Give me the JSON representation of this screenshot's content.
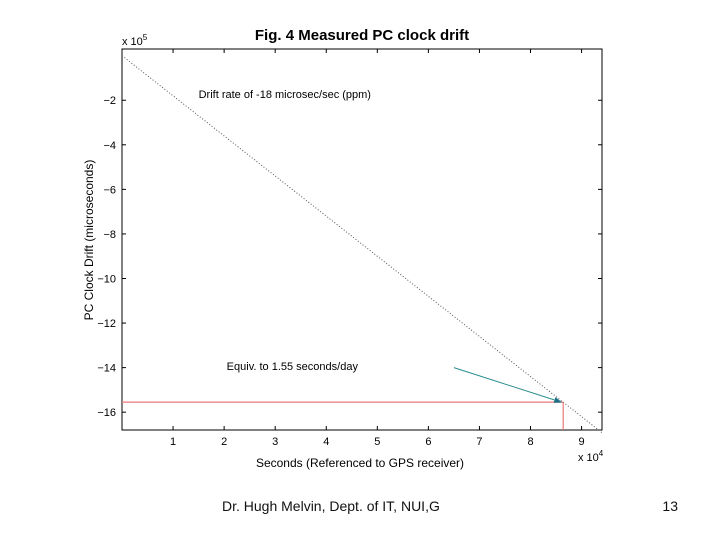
{
  "chart_data": {
    "type": "line",
    "title": "Fig. 4 Measured PC clock drift",
    "xlabel": "Seconds  (Referenced to GPS receiver)",
    "ylabel": "PC Clock Drift (microseconds)",
    "x_multiplier": "x 10^4",
    "y_multiplier": "x 10^5",
    "xlim": [
      0,
      9.4
    ],
    "ylim": [
      -16.8,
      0.3
    ],
    "x_ticks": [
      1,
      2,
      3,
      4,
      5,
      6,
      7,
      8,
      9
    ],
    "y_ticks": [
      -2,
      -4,
      -6,
      -8,
      -10,
      -12,
      -14,
      -16
    ],
    "grid": false,
    "series": [
      {
        "x": [
          0,
          9.4
        ],
        "y": [
          0,
          -16.92
        ],
        "style": "dotted"
      }
    ],
    "reference_lines": {
      "x": 8.64,
      "y": -15.55,
      "color": "#e87a78"
    },
    "annotations": [
      {
        "text": "Drift rate of -18 microsec/sec (ppm)",
        "x": 1.5,
        "y": -1.9
      },
      {
        "text": "Equiv. to 1.55 seconds/day",
        "x": 2.05,
        "y": -14.1,
        "arrow_from": [
          6.5,
          -14.0
        ],
        "arrow_to": [
          8.64,
          -15.55
        ],
        "arrow_color": "#2b8c8c"
      }
    ]
  },
  "footer": {
    "text": "Dr. Hugh Melvin, Dept. of IT, NUI,G",
    "page_number": "13"
  }
}
